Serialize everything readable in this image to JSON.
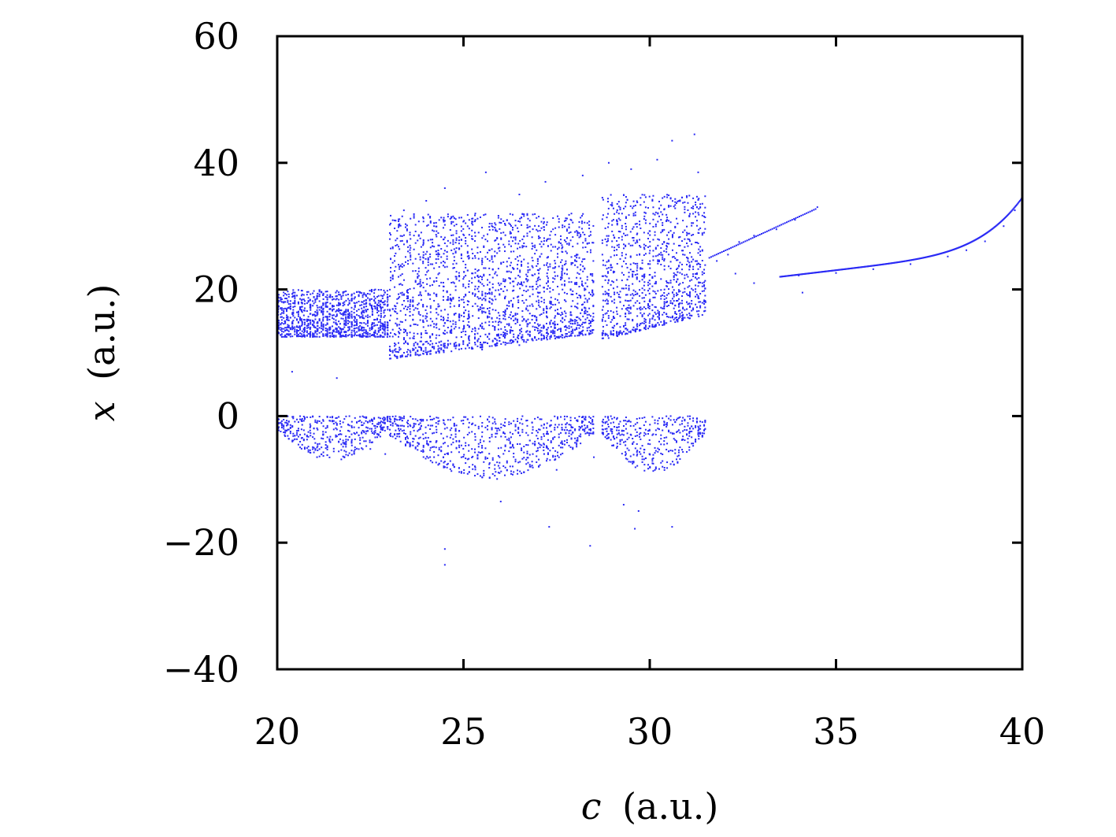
{
  "chart_data": {
    "type": "scatter",
    "title": "",
    "xlabel_var": "c",
    "xlabel_unit": "(a.u.)",
    "ylabel_var": "x",
    "ylabel_unit": "(a.u.)",
    "xlim": [
      20,
      40
    ],
    "ylim": [
      -40,
      60
    ],
    "x_ticks": [
      {
        "value": 20,
        "label": "20"
      },
      {
        "value": 25,
        "label": "25"
      },
      {
        "value": 30,
        "label": "30"
      },
      {
        "value": 35,
        "label": "35"
      },
      {
        "value": 40,
        "label": "40"
      }
    ],
    "y_ticks": [
      {
        "value": -40,
        "label": "−40"
      },
      {
        "value": -20,
        "label": "−20"
      },
      {
        "value": 0,
        "label": "0"
      },
      {
        "value": 20,
        "label": "20"
      },
      {
        "value": 40,
        "label": "40"
      },
      {
        "value": 60,
        "label": "60"
      }
    ],
    "grid": false,
    "legend": "none",
    "marker_color": "#2a2af5",
    "series": [
      {
        "chaotic_regions": [
          {
            "c_range": [
              20.0,
              23.0
            ],
            "upper_band": [
              12.5,
              20.0
            ],
            "lower_band": [
              -7.0,
              0.0
            ]
          },
          {
            "c_range": [
              23.0,
              28.5
            ],
            "upper_band": [
              9.0,
              32.0
            ],
            "lower_band": [
              -10.0,
              0.0
            ]
          },
          {
            "c_range": [
              28.7,
              31.5
            ],
            "upper_band": [
              12.0,
              35.0
            ],
            "lower_band": [
              -9.0,
              0.0
            ]
          }
        ],
        "points": [
          [
            20.2,
            15.0
          ],
          [
            20.6,
            14.2
          ],
          [
            21.0,
            16.0
          ],
          [
            21.5,
            13.5
          ],
          [
            22.0,
            15.8
          ],
          [
            22.5,
            17.5
          ],
          [
            22.9,
            14.0
          ],
          [
            20.2,
            -3.0
          ],
          [
            21.0,
            -3.6
          ],
          [
            21.8,
            -4.4
          ],
          [
            22.5,
            -5.2
          ],
          [
            22.9,
            -6.0
          ],
          [
            21.6,
            6.0
          ],
          [
            20.4,
            7.0
          ],
          [
            23.4,
            32.5
          ],
          [
            24.0,
            34.0
          ],
          [
            24.5,
            36.0
          ],
          [
            25.6,
            38.5
          ],
          [
            26.5,
            35.0
          ],
          [
            27.2,
            37.0
          ],
          [
            28.2,
            38.0
          ],
          [
            28.9,
            40.0
          ],
          [
            29.5,
            39.0
          ],
          [
            30.2,
            40.5
          ],
          [
            30.6,
            43.5
          ],
          [
            31.2,
            44.5
          ],
          [
            31.3,
            38.5
          ],
          [
            23.5,
            11.5
          ],
          [
            24.5,
            10.8
          ],
          [
            25.5,
            10.5
          ],
          [
            26.5,
            11.2
          ],
          [
            27.5,
            12.5
          ],
          [
            28.4,
            13.5
          ],
          [
            29.0,
            14.0
          ],
          [
            30.0,
            15.0
          ],
          [
            31.0,
            16.0
          ],
          [
            31.5,
            18.0
          ],
          [
            23.3,
            -0.5
          ],
          [
            24.5,
            -2.0
          ],
          [
            25.5,
            -5.0
          ],
          [
            26.8,
            -8.0
          ],
          [
            27.5,
            -8.5
          ],
          [
            28.5,
            -6.5
          ],
          [
            29.5,
            -3.0
          ],
          [
            24.5,
            -21.0
          ],
          [
            24.5,
            -23.5
          ],
          [
            27.3,
            -17.5
          ],
          [
            28.4,
            -20.5
          ],
          [
            29.6,
            -17.8
          ],
          [
            30.6,
            -17.5
          ],
          [
            29.3,
            -14.0
          ],
          [
            29.7,
            -15.0
          ],
          [
            26.0,
            -13.5
          ],
          [
            31.8,
            24.5
          ],
          [
            32.1,
            25.5
          ],
          [
            32.4,
            27.5
          ],
          [
            32.8,
            28.5
          ],
          [
            33.4,
            29.5
          ],
          [
            33.9,
            31.0
          ],
          [
            34.5,
            33.0
          ],
          [
            32.3,
            22.5
          ],
          [
            32.8,
            21.0
          ],
          [
            34.1,
            19.5
          ],
          [
            33.5,
            22.0
          ],
          [
            34.0,
            22.2
          ],
          [
            35.0,
            22.6
          ],
          [
            36.0,
            23.2
          ],
          [
            37.0,
            24.0
          ],
          [
            38.0,
            25.2
          ],
          [
            38.5,
            26.2
          ],
          [
            39.0,
            27.6
          ],
          [
            39.5,
            30.0
          ],
          [
            39.8,
            32.5
          ],
          [
            40.0,
            34.5
          ]
        ]
      }
    ]
  }
}
